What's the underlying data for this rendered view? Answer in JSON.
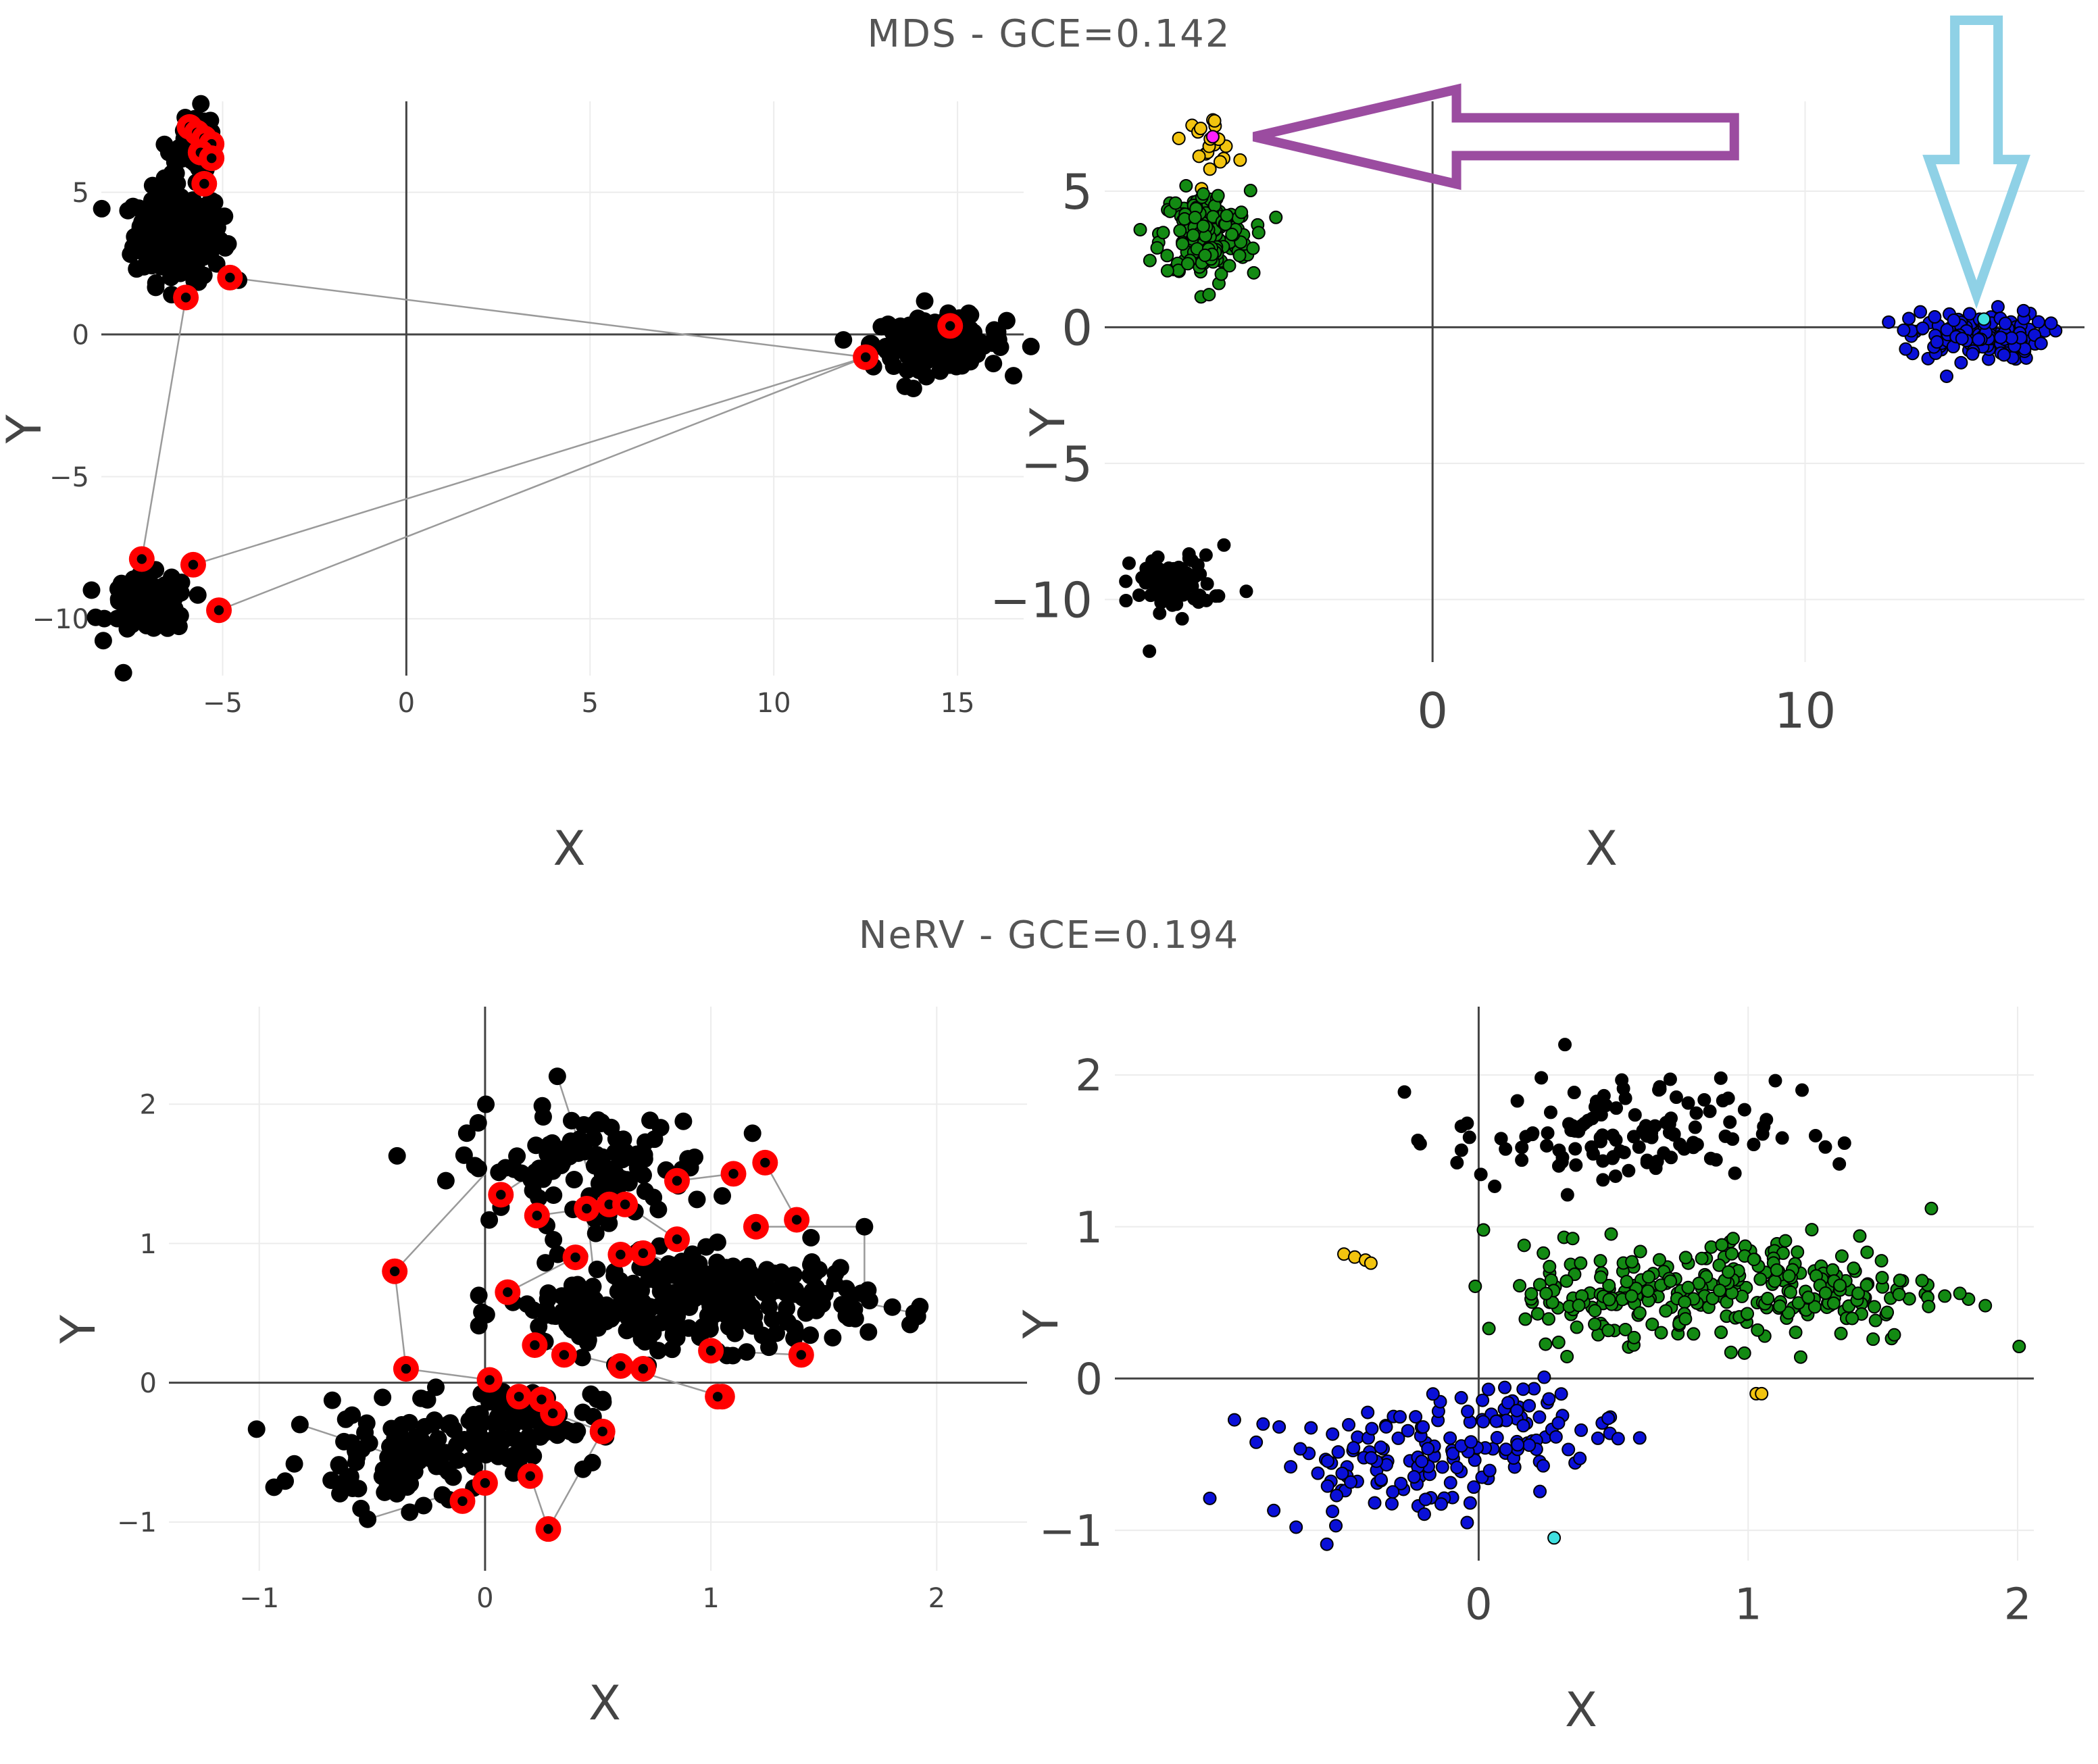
{
  "page": {
    "background": "#ffffff"
  },
  "sections": [
    {
      "title": "MDS - GCE=0.142"
    },
    {
      "title": "NeRV - GCE=0.194"
    }
  ],
  "colors": {
    "point_black": "#000000",
    "highlight_red": "#ff0000",
    "edge_gray": "#9a9a9a",
    "axis_line": "#444444",
    "grid": "#ececec",
    "tick_text": "#444444",
    "label_text": "#444444",
    "cluster_yellow": "#f2c40f",
    "cluster_green": "#138a13",
    "cluster_blue": "#0a10d8",
    "outlier_cyan": "#40e0e0",
    "outlier_magenta": "#ff20ff",
    "arrow_purple": "#9b4ca0",
    "arrow_lightblue": "#8fd1e6"
  },
  "chart_data": [
    {
      "id": "mds-graph",
      "type": "scatter",
      "xlabel": "X",
      "ylabel": "Y",
      "xlim": [
        -8.3,
        16.8
      ],
      "ylim": [
        -12.0,
        8.2
      ],
      "xticks": [
        -5,
        0,
        5,
        10,
        15
      ],
      "yticks": [
        -10,
        -5,
        0,
        5
      ],
      "grid": true,
      "clusters": [
        {
          "center": [
            -6.2,
            3.5
          ],
          "spread": [
            0.6,
            0.8
          ],
          "count": 220,
          "color": "point_black"
        },
        {
          "center": [
            14.5,
            -0.3
          ],
          "spread": [
            0.9,
            0.45
          ],
          "count": 150,
          "color": "point_black"
        },
        {
          "center": [
            -7.0,
            -9.5
          ],
          "spread": [
            0.55,
            0.5
          ],
          "count": 110,
          "color": "point_black"
        },
        {
          "center": [
            -5.8,
            6.8
          ],
          "spread": [
            0.35,
            0.55
          ],
          "count": 30,
          "color": "point_black"
        }
      ],
      "extra_points": [
        {
          "x": -7.7,
          "y": -11.9,
          "color": "point_black"
        },
        {
          "x": -5.5,
          "y": 7.5,
          "color": "point_black"
        },
        {
          "x": 13.8,
          "y": -1.9,
          "color": "point_black"
        }
      ],
      "highlighted": [
        [
          -5.9,
          7.3
        ],
        [
          -5.7,
          7.1
        ],
        [
          -5.5,
          6.9
        ],
        [
          -5.3,
          6.7
        ],
        [
          -5.6,
          6.4
        ],
        [
          -5.3,
          6.2
        ],
        [
          -5.5,
          5.3
        ],
        [
          -4.8,
          2.0
        ],
        [
          -6.0,
          1.3
        ],
        [
          -7.2,
          -7.9
        ],
        [
          -5.8,
          -8.1
        ],
        [
          -5.1,
          -9.7
        ],
        [
          12.5,
          -0.8
        ],
        [
          14.8,
          0.3
        ]
      ],
      "edges": [
        [
          [
            -4.8,
            2.0
          ],
          [
            12.5,
            -0.8
          ]
        ],
        [
          [
            -6.0,
            1.3
          ],
          [
            -7.2,
            -7.9
          ]
        ],
        [
          [
            -5.8,
            -8.1
          ],
          [
            12.5,
            -0.8
          ]
        ],
        [
          [
            -5.1,
            -9.7
          ],
          [
            12.5,
            -0.8
          ]
        ]
      ]
    },
    {
      "id": "mds-clusters",
      "type": "scatter",
      "xlabel": "X",
      "ylabel": "Y",
      "xlim": [
        -8.8,
        17.5
      ],
      "ylim": [
        -12.3,
        8.3
      ],
      "xticks": [
        0,
        10
      ],
      "yticks": [
        -10,
        -5,
        0,
        5
      ],
      "grid": true,
      "clusters": [
        {
          "center": [
            -6.0,
            6.9
          ],
          "spread": [
            0.35,
            0.45
          ],
          "count": 22,
          "color": "cluster_yellow"
        },
        {
          "center": [
            -6.1,
            3.4
          ],
          "spread": [
            0.6,
            0.8
          ],
          "count": 180,
          "color": "cluster_green"
        },
        {
          "center": [
            14.6,
            -0.3
          ],
          "spread": [
            0.9,
            0.45
          ],
          "count": 130,
          "color": "cluster_blue"
        },
        {
          "center": [
            -7.0,
            -9.4
          ],
          "spread": [
            0.55,
            0.5
          ],
          "count": 90,
          "color": "point_black"
        }
      ],
      "extra_points": [
        {
          "x": -7.6,
          "y": -11.9,
          "color": "point_black"
        },
        {
          "x": -5.0,
          "y": -9.7,
          "color": "point_black"
        },
        {
          "x": -5.6,
          "y": -8.0,
          "color": "point_black"
        },
        {
          "x": 13.8,
          "y": -1.8,
          "color": "cluster_blue"
        },
        {
          "x": 12.7,
          "y": -0.8,
          "color": "cluster_blue"
        },
        {
          "x": -6.0,
          "y": 1.2,
          "color": "cluster_green"
        },
        {
          "x": -4.8,
          "y": 2.0,
          "color": "cluster_green"
        },
        {
          "x": 14.8,
          "y": 0.3,
          "color": "outlier_cyan"
        },
        {
          "x": -5.9,
          "y": 7.0,
          "color": "outlier_magenta"
        }
      ],
      "arrows": [
        {
          "color": "arrow_purple",
          "direction": "left",
          "from": [
            8.1,
            7.0
          ],
          "to": [
            -4.8,
            7.0
          ]
        },
        {
          "color": "arrow_lightblue",
          "direction": "down",
          "from": [
            14.6,
            12.0
          ],
          "to": [
            14.6,
            1.2
          ]
        }
      ]
    },
    {
      "id": "nerv-graph",
      "type": "scatter",
      "xlabel": "X",
      "ylabel": "Y",
      "xlim": [
        -1.4,
        2.4
      ],
      "ylim": [
        -1.35,
        2.7
      ],
      "xticks": [
        -1,
        0,
        1,
        2
      ],
      "yticks": [
        -1,
        0,
        1,
        2
      ],
      "grid": true,
      "clusters": [
        {
          "center": [
            0.45,
            1.55
          ],
          "spread": [
            0.28,
            0.2
          ],
          "count": 110,
          "color": "point_black"
        },
        {
          "center": [
            1.1,
            0.6
          ],
          "spread": [
            0.3,
            0.17
          ],
          "count": 200,
          "color": "point_black"
        },
        {
          "center": [
            0.5,
            0.5
          ],
          "spread": [
            0.2,
            0.15
          ],
          "count": 90,
          "color": "point_black"
        },
        {
          "center": [
            -0.35,
            -0.55
          ],
          "spread": [
            0.22,
            0.17
          ],
          "count": 90,
          "color": "point_black"
        },
        {
          "center": [
            0.1,
            -0.3
          ],
          "spread": [
            0.2,
            0.15
          ],
          "count": 80,
          "color": "point_black"
        }
      ],
      "extra_points": [
        {
          "x": 0.32,
          "y": 2.2,
          "color": "point_black"
        },
        {
          "x": 1.9,
          "y": 0.5,
          "color": "point_black"
        },
        {
          "x": -0.52,
          "y": -0.98,
          "color": "point_black"
        },
        {
          "x": -0.82,
          "y": -0.3,
          "color": "point_black"
        },
        {
          "x": 1.68,
          "y": 1.12,
          "color": "point_black"
        }
      ],
      "highlighted": [
        [
          0.07,
          1.35
        ],
        [
          0.23,
          1.2
        ],
        [
          0.45,
          1.25
        ],
        [
          0.55,
          1.28
        ],
        [
          0.62,
          1.28
        ],
        [
          0.85,
          1.45
        ],
        [
          1.1,
          1.5
        ],
        [
          1.24,
          1.58
        ],
        [
          1.38,
          1.17
        ],
        [
          1.2,
          1.12
        ],
        [
          0.85,
          1.03
        ],
        [
          0.7,
          0.93
        ],
        [
          0.6,
          0.92
        ],
        [
          0.4,
          0.9
        ],
        [
          0.1,
          0.65
        ],
        [
          -0.4,
          0.8
        ],
        [
          -0.35,
          0.1
        ],
        [
          0.22,
          0.27
        ],
        [
          0.35,
          0.2
        ],
        [
          0.6,
          0.12
        ],
        [
          0.7,
          0.1
        ],
        [
          1.0,
          0.23
        ],
        [
          1.4,
          0.2
        ],
        [
          0.02,
          0.02
        ],
        [
          0.15,
          -0.1
        ],
        [
          0.25,
          -0.12
        ],
        [
          0.3,
          -0.22
        ],
        [
          0.52,
          -0.35
        ],
        [
          1.05,
          -0.1
        ],
        [
          1.03,
          -0.1
        ],
        [
          0.0,
          -0.72
        ],
        [
          -0.1,
          -0.85
        ],
        [
          0.2,
          -0.67
        ],
        [
          0.28,
          -1.05
        ]
      ],
      "edges": [
        [
          [
            -0.4,
            0.8
          ],
          [
            0.0,
            1.5
          ]
        ],
        [
          [
            -0.4,
            0.8
          ],
          [
            -0.35,
            0.1
          ]
        ],
        [
          [
            0.07,
            1.35
          ],
          [
            0.3,
            1.6
          ]
        ],
        [
          [
            0.23,
            1.2
          ],
          [
            0.45,
            1.25
          ]
        ],
        [
          [
            0.85,
            1.45
          ],
          [
            1.1,
            1.5
          ]
        ],
        [
          [
            1.24,
            1.58
          ],
          [
            1.38,
            1.17
          ]
        ],
        [
          [
            1.2,
            1.12
          ],
          [
            1.68,
            1.12
          ]
        ],
        [
          [
            1.68,
            1.12
          ],
          [
            1.68,
            0.65
          ]
        ],
        [
          [
            0.1,
            0.65
          ],
          [
            0.4,
            0.9
          ]
        ],
        [
          [
            0.22,
            0.27
          ],
          [
            0.6,
            0.12
          ]
        ],
        [
          [
            1.0,
            0.23
          ],
          [
            1.4,
            0.2
          ]
        ],
        [
          [
            0.02,
            0.02
          ],
          [
            0.15,
            -0.1
          ]
        ],
        [
          [
            0.3,
            -0.22
          ],
          [
            0.52,
            -0.35
          ]
        ],
        [
          [
            1.05,
            -0.1
          ],
          [
            0.6,
            0.12
          ]
        ],
        [
          [
            0.0,
            -0.72
          ],
          [
            -0.1,
            -0.85
          ]
        ],
        [
          [
            0.2,
            -0.67
          ],
          [
            0.28,
            -1.05
          ]
        ],
        [
          [
            -0.35,
            0.1
          ],
          [
            0.02,
            0.02
          ]
        ],
        [
          [
            -0.52,
            -0.98
          ],
          [
            0.0,
            -0.72
          ]
        ],
        [
          [
            0.85,
            1.03
          ],
          [
            1.1,
            0.6
          ]
        ],
        [
          [
            0.45,
            1.25
          ],
          [
            0.5,
            0.5
          ]
        ],
        [
          [
            -0.82,
            -0.3
          ],
          [
            -0.35,
            -0.55
          ]
        ],
        [
          [
            0.32,
            2.2
          ],
          [
            0.45,
            1.55
          ]
        ],
        [
          [
            1.9,
            0.5
          ],
          [
            1.6,
            0.6
          ]
        ],
        [
          [
            0.52,
            -0.35
          ],
          [
            0.28,
            -1.05
          ]
        ],
        [
          [
            0.7,
            0.93
          ],
          [
            1.05,
            0.75
          ]
        ],
        [
          [
            0.62,
            1.28
          ],
          [
            0.85,
            1.03
          ]
        ]
      ]
    },
    {
      "id": "nerv-clusters",
      "type": "scatter",
      "xlabel": "X",
      "ylabel": "Y",
      "xlim": [
        -1.35,
        2.06
      ],
      "ylim": [
        -1.2,
        2.45
      ],
      "xticks": [
        0,
        1,
        2
      ],
      "yticks": [
        -1,
        0,
        1,
        2
      ],
      "grid": true,
      "clusters": [
        {
          "center": [
            0.5,
            1.6
          ],
          "spread": [
            0.3,
            0.18
          ],
          "count": 120,
          "color": "point_black"
        },
        {
          "center": [
            1.1,
            0.6
          ],
          "spread": [
            0.32,
            0.18
          ],
          "count": 210,
          "color": "cluster_green"
        },
        {
          "center": [
            0.45,
            0.55
          ],
          "spread": [
            0.2,
            0.15
          ],
          "count": 80,
          "color": "cluster_green"
        },
        {
          "center": [
            -0.3,
            -0.55
          ],
          "spread": [
            0.25,
            0.18
          ],
          "count": 110,
          "color": "cluster_blue"
        },
        {
          "center": [
            0.15,
            -0.3
          ],
          "spread": [
            0.18,
            0.15
          ],
          "count": 60,
          "color": "cluster_blue"
        }
      ],
      "extra_points": [
        {
          "x": 0.32,
          "y": 2.2,
          "color": "point_black"
        },
        {
          "x": 1.2,
          "y": 1.9,
          "color": "point_black"
        },
        {
          "x": 1.25,
          "y": 1.6,
          "color": "point_black"
        },
        {
          "x": 1.88,
          "y": 0.48,
          "color": "cluster_green"
        },
        {
          "x": 1.68,
          "y": 1.12,
          "color": "cluster_green"
        },
        {
          "x": -0.5,
          "y": 0.82,
          "color": "cluster_yellow"
        },
        {
          "x": -0.46,
          "y": 0.8,
          "color": "cluster_yellow"
        },
        {
          "x": -0.42,
          "y": 0.78,
          "color": "cluster_yellow"
        },
        {
          "x": -0.4,
          "y": 0.76,
          "color": "cluster_yellow"
        },
        {
          "x": 1.03,
          "y": -0.1,
          "color": "cluster_yellow"
        },
        {
          "x": 1.05,
          "y": -0.1,
          "color": "cluster_yellow"
        },
        {
          "x": 0.28,
          "y": -1.05,
          "color": "outlier_cyan"
        },
        {
          "x": -0.53,
          "y": -0.97,
          "color": "cluster_blue"
        },
        {
          "x": -0.8,
          "y": -0.3,
          "color": "cluster_blue"
        }
      ]
    }
  ]
}
